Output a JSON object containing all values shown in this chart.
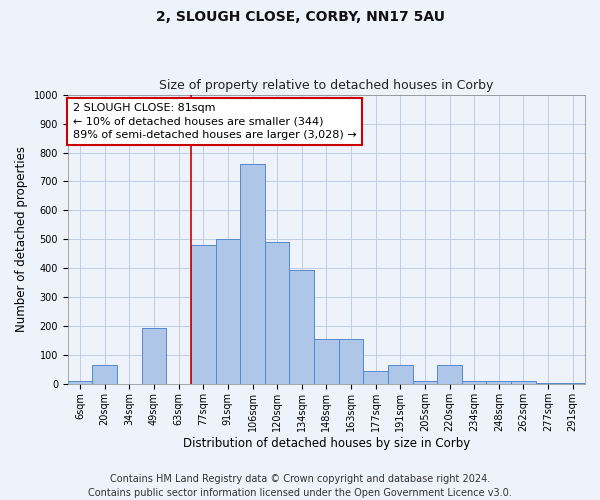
{
  "title": "2, SLOUGH CLOSE, CORBY, NN17 5AU",
  "subtitle": "Size of property relative to detached houses in Corby",
  "xlabel": "Distribution of detached houses by size in Corby",
  "ylabel": "Number of detached properties",
  "categories": [
    "6sqm",
    "20sqm",
    "34sqm",
    "49sqm",
    "63sqm",
    "77sqm",
    "91sqm",
    "106sqm",
    "120sqm",
    "134sqm",
    "148sqm",
    "163sqm",
    "177sqm",
    "191sqm",
    "205sqm",
    "220sqm",
    "234sqm",
    "248sqm",
    "262sqm",
    "277sqm",
    "291sqm"
  ],
  "values": [
    10,
    65,
    0,
    195,
    0,
    480,
    500,
    760,
    490,
    395,
    155,
    155,
    45,
    65,
    10,
    65,
    10,
    10,
    10,
    5,
    5
  ],
  "bar_color": "#aec6e8",
  "bar_edge_color": "#5588cc",
  "annotation_text": "2 SLOUGH CLOSE: 81sqm\n← 10% of detached houses are smaller (344)\n89% of semi-detached houses are larger (3,028) →",
  "annotation_box_color": "#ffffff",
  "annotation_box_edge_color": "#cc0000",
  "vline_x": 4.5,
  "vline_color": "#cc0000",
  "ylim": [
    0,
    1000
  ],
  "yticks": [
    0,
    100,
    200,
    300,
    400,
    500,
    600,
    700,
    800,
    900,
    1000
  ],
  "footer_line1": "Contains HM Land Registry data © Crown copyright and database right 2024.",
  "footer_line2": "Contains public sector information licensed under the Open Government Licence v3.0.",
  "background_color": "#eef2fb",
  "grid_color": "#b8c8e0",
  "title_fontsize": 10,
  "subtitle_fontsize": 9,
  "axis_label_fontsize": 8.5,
  "tick_fontsize": 7,
  "annotation_fontsize": 8,
  "footer_fontsize": 7
}
